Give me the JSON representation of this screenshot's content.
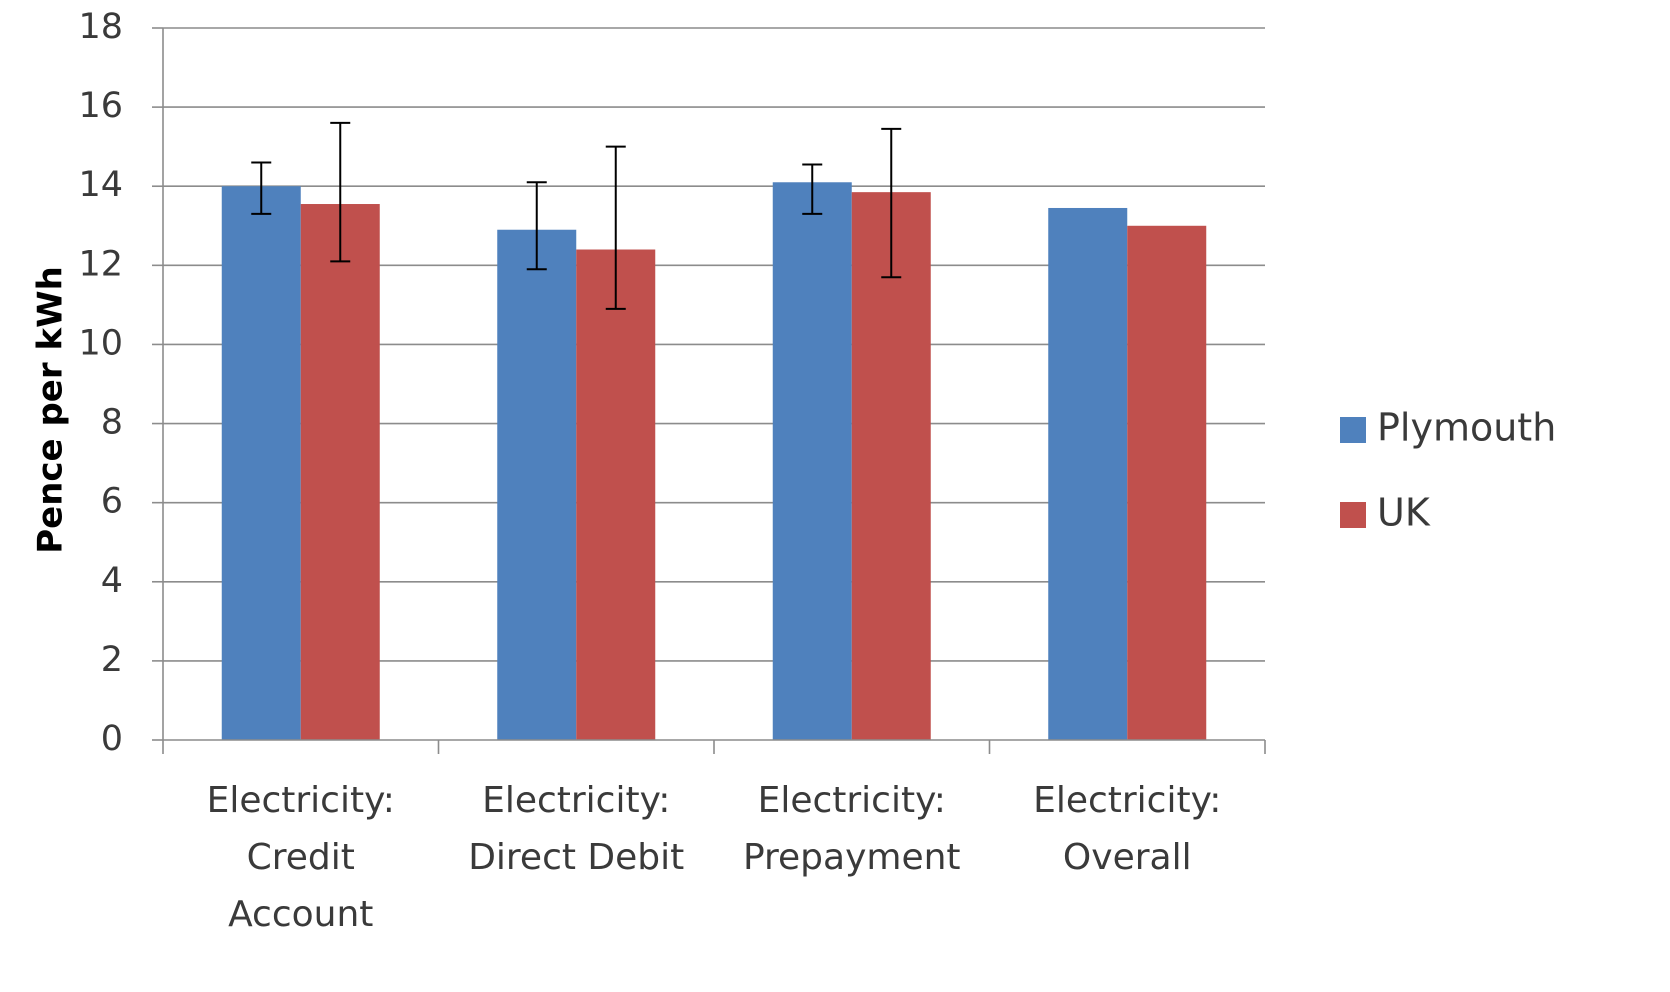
{
  "chart_data": {
    "type": "bar",
    "categories": [
      [
        "Electricity:",
        "Credit",
        "Account"
      ],
      [
        "Electricity:",
        "Direct Debit"
      ],
      [
        "Electricity:",
        "Prepayment"
      ],
      [
        "Electricity:",
        "Overall"
      ]
    ],
    "series": [
      {
        "name": "Plymouth",
        "color": "#4f81bd",
        "values": [
          14.0,
          12.9,
          14.1,
          13.45
        ],
        "error_bars": [
          [
            13.3,
            14.6
          ],
          [
            11.9,
            14.1
          ],
          [
            13.3,
            14.55
          ],
          null
        ]
      },
      {
        "name": "UK",
        "color": "#c0504d",
        "values": [
          13.55,
          12.4,
          13.85,
          13.0
        ],
        "error_bars": [
          [
            12.1,
            15.6
          ],
          [
            10.9,
            15.0
          ],
          [
            11.7,
            15.45
          ],
          null
        ]
      }
    ],
    "title": "",
    "xlabel": "",
    "ylabel": "Pence per kWh",
    "ylim": [
      0,
      18
    ],
    "yticks": [
      0,
      2,
      4,
      6,
      8,
      10,
      12,
      14,
      16,
      18
    ],
    "grid": true,
    "legend_position": "right"
  }
}
